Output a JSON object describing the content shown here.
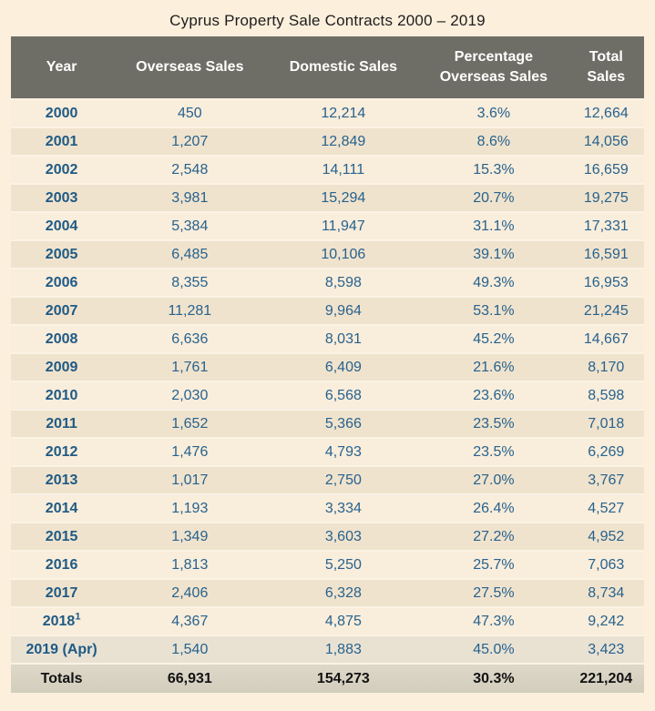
{
  "title": "Cyprus Property Sale Contracts 2000 – 2019",
  "colors": {
    "page_background": "#fcefdc",
    "header_background": "#6f6e66",
    "header_text": "#ffffff",
    "row_light": "#f9eddb",
    "row_dark": "#f0e3cd",
    "row_gray": "#e9e2d3",
    "totals_background": "#d8d3c3",
    "data_text_blue": "#27628e",
    "totals_text": "#121212"
  },
  "chart_data": {
    "type": "table",
    "title": "Cyprus Property Sale Contracts 2000 – 2019",
    "columns": [
      {
        "id": "year",
        "lines": [
          "Year"
        ]
      },
      {
        "id": "overseas",
        "lines": [
          "Overseas Sales"
        ]
      },
      {
        "id": "domestic",
        "lines": [
          "Domestic Sales"
        ]
      },
      {
        "id": "percentage",
        "lines": [
          "Percentage",
          "Overseas Sales"
        ]
      },
      {
        "id": "total",
        "lines": [
          "Total",
          "Sales"
        ]
      }
    ],
    "rows": [
      {
        "year": "2000",
        "overseas": "450",
        "domestic": "12,214",
        "percentage": "3.6%",
        "total": "12,664"
      },
      {
        "year": "2001",
        "overseas": "1,207",
        "domestic": "12,849",
        "percentage": "8.6%",
        "total": "14,056"
      },
      {
        "year": "2002",
        "overseas": "2,548",
        "domestic": "14,111",
        "percentage": "15.3%",
        "total": "16,659"
      },
      {
        "year": "2003",
        "overseas": "3,981",
        "domestic": "15,294",
        "percentage": "20.7%",
        "total": "19,275"
      },
      {
        "year": "2004",
        "overseas": "5,384",
        "domestic": "11,947",
        "percentage": "31.1%",
        "total": "17,331"
      },
      {
        "year": "2005",
        "overseas": "6,485",
        "domestic": "10,106",
        "percentage": "39.1%",
        "total": "16,591"
      },
      {
        "year": "2006",
        "overseas": "8,355",
        "domestic": "8,598",
        "percentage": "49.3%",
        "total": "16,953"
      },
      {
        "year": "2007",
        "overseas": "11,281",
        "domestic": "9,964",
        "percentage": "53.1%",
        "total": "21,245"
      },
      {
        "year": "2008",
        "overseas": "6,636",
        "domestic": "8,031",
        "percentage": "45.2%",
        "total": "14,667"
      },
      {
        "year": "2009",
        "overseas": "1,761",
        "domestic": "6,409",
        "percentage": "21.6%",
        "total": "8,170"
      },
      {
        "year": "2010",
        "overseas": "2,030",
        "domestic": "6,568",
        "percentage": "23.6%",
        "total": "8,598"
      },
      {
        "year": "2011",
        "overseas": "1,652",
        "domestic": "5,366",
        "percentage": "23.5%",
        "total": "7,018"
      },
      {
        "year": "2012",
        "overseas": "1,476",
        "domestic": "4,793",
        "percentage": "23.5%",
        "total": "6,269"
      },
      {
        "year": "2013",
        "overseas": "1,017",
        "domestic": "2,750",
        "percentage": "27.0%",
        "total": "3,767"
      },
      {
        "year": "2014",
        "overseas": "1,193",
        "domestic": "3,334",
        "percentage": "26.4%",
        "total": "4,527"
      },
      {
        "year": "2015",
        "overseas": "1,349",
        "domestic": "3,603",
        "percentage": "27.2%",
        "total": "4,952"
      },
      {
        "year": "2016",
        "overseas": "1,813",
        "domestic": "5,250",
        "percentage": "25.7%",
        "total": "7,063"
      },
      {
        "year": "2017",
        "overseas": "2,406",
        "domestic": "6,328",
        "percentage": "27.5%",
        "total": "8,734"
      },
      {
        "year": "2018",
        "year_sup": "1",
        "overseas": "4,367",
        "domestic": "4,875",
        "percentage": "47.3%",
        "total": "9,242"
      },
      {
        "year": "2019 (Apr)",
        "overseas": "1,540",
        "domestic": "1,883",
        "percentage": "45.0%",
        "total": "3,423"
      }
    ],
    "totals": {
      "label": "Totals",
      "overseas": "66,931",
      "domestic": "154,273",
      "percentage": "30.3%",
      "total": "221,204"
    }
  }
}
